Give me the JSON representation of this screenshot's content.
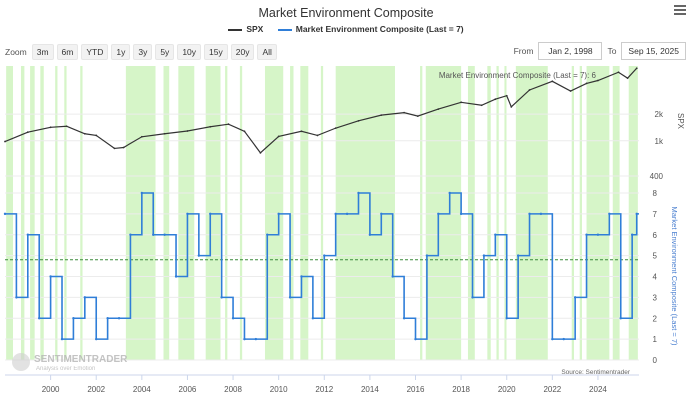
{
  "title": "Market Environment Composite",
  "legend": {
    "spx": "SPX",
    "composite": "Market Environment Composite (Last = 7)"
  },
  "zoom": {
    "label": "Zoom",
    "buttons": [
      "3m",
      "6m",
      "YTD",
      "1y",
      "3y",
      "5y",
      "10y",
      "15y",
      "20y",
      "All"
    ]
  },
  "range": {
    "from_label": "From",
    "from_value": "Jan 2, 1998",
    "to_label": "To",
    "to_value": "Sep 15, 2025"
  },
  "source": "Source: Sentimentrader",
  "watermark": {
    "name": "SENTIMENTRADER",
    "tagline": "Analysis over Emotion"
  },
  "colors": {
    "spx": "#333333",
    "composite": "#2f7ed8",
    "shade": "#d6f5c8",
    "midline": "#3a8a3a"
  },
  "chart_data": [
    {
      "type": "line",
      "name": "SPX",
      "title": "Market Environment Composite",
      "ylabel": "SPX",
      "yscale": "log",
      "ylim": [
        400,
        7000
      ],
      "yticks": [
        400,
        1000,
        2000
      ],
      "ytick_labels": [
        "400",
        "1k",
        "2k"
      ],
      "annotation": "Market Environment Composite (Last = 7): 6",
      "x": [
        1998.0,
        1999.0,
        2000.0,
        2000.7,
        2001.5,
        2002.0,
        2002.8,
        2003.2,
        2004.0,
        2005.0,
        2006.0,
        2007.0,
        2007.8,
        2008.5,
        2009.2,
        2010.0,
        2011.0,
        2011.7,
        2012.5,
        2013.5,
        2014.5,
        2015.5,
        2016.1,
        2017.0,
        2018.0,
        2018.9,
        2019.5,
        2020.0,
        2020.2,
        2021.0,
        2022.0,
        2022.8,
        2023.5,
        2024.0,
        2024.9,
        2025.3,
        2025.7
      ],
      "y": [
        980,
        1250,
        1420,
        1460,
        1200,
        1150,
        820,
        840,
        1110,
        1200,
        1290,
        1440,
        1540,
        1280,
        730,
        1120,
        1280,
        1150,
        1390,
        1680,
        1950,
        2080,
        1900,
        2280,
        2720,
        2520,
        2950,
        3230,
        2420,
        3750,
        4700,
        3650,
        4450,
        4800,
        5950,
        5100,
        6600
      ]
    },
    {
      "type": "line",
      "name": "Market Environment Composite",
      "ylabel": "Market Environment Composite (Last = 7)",
      "ylim": [
        0,
        8
      ],
      "yticks": [
        0,
        1,
        2,
        3,
        4,
        5,
        6,
        7,
        8
      ],
      "reference_line": 4.8,
      "last": 7,
      "xlim": [
        1998.0,
        2025.8
      ],
      "xticks": [
        2000,
        2002,
        2004,
        2006,
        2008,
        2010,
        2012,
        2014,
        2016,
        2018,
        2020,
        2022,
        2024
      ],
      "x": [
        1998.0,
        1998.5,
        1999.0,
        1999.5,
        2000.0,
        2000.5,
        2001.0,
        2001.5,
        2002.0,
        2002.5,
        2003.0,
        2003.5,
        2004.0,
        2004.5,
        2005.0,
        2005.5,
        2006.0,
        2006.5,
        2007.0,
        2007.5,
        2008.0,
        2008.5,
        2009.0,
        2009.5,
        2010.0,
        2010.5,
        2011.0,
        2011.5,
        2012.0,
        2012.5,
        2013.0,
        2013.5,
        2014.0,
        2014.5,
        2015.0,
        2015.5,
        2016.0,
        2016.5,
        2017.0,
        2017.5,
        2018.0,
        2018.5,
        2019.0,
        2019.5,
        2020.0,
        2020.5,
        2021.0,
        2021.5,
        2022.0,
        2022.5,
        2023.0,
        2023.5,
        2024.0,
        2024.5,
        2025.0,
        2025.5,
        2025.7
      ],
      "y": [
        7,
        3,
        6,
        2,
        4,
        1,
        2,
        3,
        1,
        2,
        2,
        6,
        8,
        6,
        6,
        4,
        7,
        5,
        7,
        3,
        2,
        1,
        1,
        6,
        7,
        3,
        4,
        2,
        5,
        7,
        7,
        8,
        6,
        7,
        4,
        2,
        1,
        5,
        7,
        8,
        7,
        3,
        5,
        6,
        2,
        5,
        7,
        7,
        1,
        1,
        3,
        6,
        6,
        7,
        2,
        6,
        7
      ],
      "shaded_periods": [
        [
          1998.05,
          1998.35
        ],
        [
          1998.7,
          1998.85
        ],
        [
          1999.1,
          1999.3
        ],
        [
          1999.55,
          1999.7
        ],
        [
          2000.2,
          2000.3
        ],
        [
          2000.6,
          2000.7
        ],
        [
          2001.3,
          2001.4
        ],
        [
          2003.3,
          2004.6
        ],
        [
          2004.95,
          2005.2
        ],
        [
          2005.6,
          2006.3
        ],
        [
          2006.8,
          2007.45
        ],
        [
          2007.65,
          2007.75
        ],
        [
          2008.3,
          2008.4
        ],
        [
          2009.4,
          2010.2
        ],
        [
          2010.5,
          2010.65
        ],
        [
          2010.95,
          2011.3
        ],
        [
          2011.85,
          2011.95
        ],
        [
          2012.5,
          2015.1
        ],
        [
          2016.2,
          2016.3
        ],
        [
          2016.45,
          2018.0
        ],
        [
          2018.3,
          2018.6
        ],
        [
          2019.15,
          2019.3
        ],
        [
          2019.55,
          2019.65
        ],
        [
          2019.9,
          2019.99
        ],
        [
          2020.4,
          2021.8
        ],
        [
          2022.85,
          2022.95
        ],
        [
          2023.2,
          2023.3
        ],
        [
          2023.5,
          2024.5
        ],
        [
          2024.65,
          2024.95
        ],
        [
          2025.35,
          2025.75
        ]
      ]
    }
  ]
}
